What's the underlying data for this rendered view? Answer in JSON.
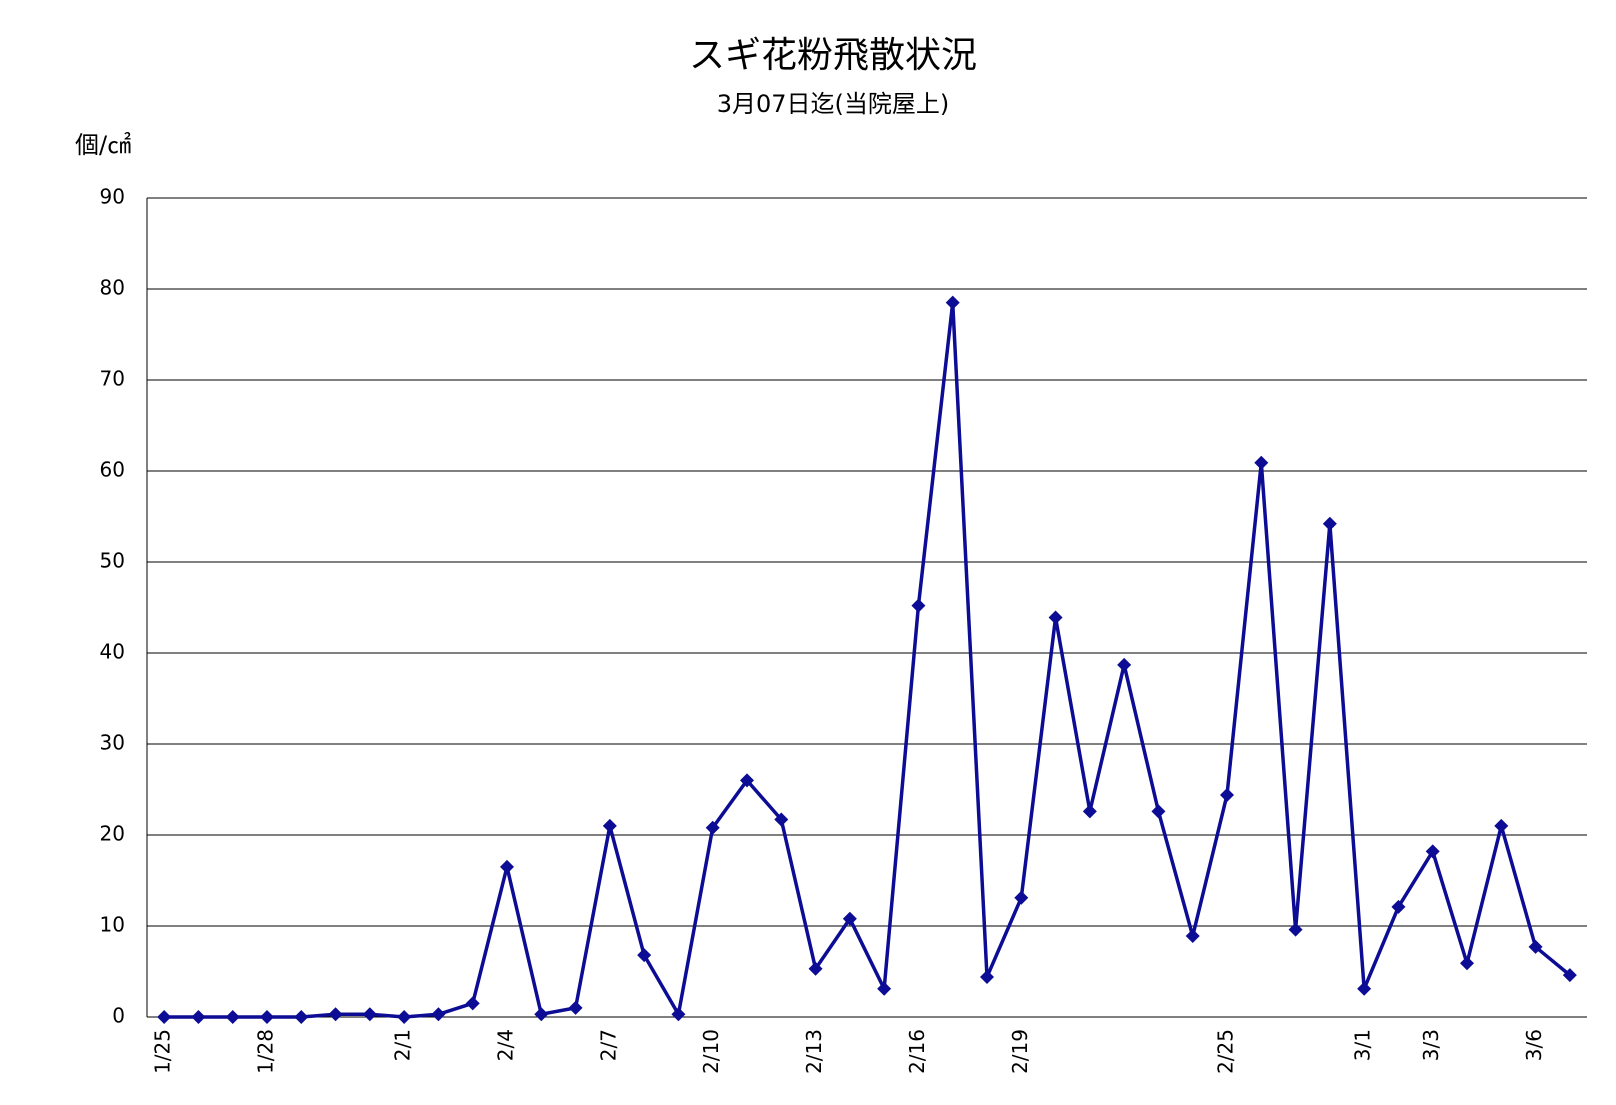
{
  "chart_data": {
    "type": "line",
    "title": "スギ花粉飛散状況",
    "subtitle": "3月07日迄(当院屋上)",
    "y_label": "個/㎠",
    "categories": [
      "1/25",
      null,
      null,
      "1/28",
      null,
      null,
      null,
      "2/1",
      null,
      null,
      "2/4",
      null,
      null,
      "2/7",
      null,
      null,
      "2/10",
      null,
      null,
      "2/13",
      null,
      null,
      "2/16",
      null,
      null,
      "2/19",
      null,
      null,
      null,
      null,
      null,
      "2/25",
      null,
      null,
      null,
      "3/1",
      null,
      "3/3",
      null,
      null,
      "3/6",
      null
    ],
    "series": [
      {
        "color": "#0c0c94",
        "values": [
          0,
          0,
          0,
          0,
          0,
          0.3,
          0.3,
          0,
          0.3,
          1.5,
          16.5,
          0.3,
          1,
          21,
          6.8,
          0.3,
          20.8,
          26,
          21.7,
          5.3,
          10.8,
          3.1,
          45.2,
          78.5,
          4.4,
          13.1,
          43.9,
          22.6,
          38.7,
          22.6,
          8.9,
          24.4,
          60.9,
          9.6,
          54.2,
          3.1,
          12.1,
          18.2,
          5.9,
          21,
          7.7,
          4.6
        ]
      }
    ],
    "ylim": [
      0,
      90
    ],
    "yticks": [
      0,
      10,
      20,
      30,
      40,
      50,
      60,
      70,
      80,
      90
    ],
    "grid": true
  }
}
